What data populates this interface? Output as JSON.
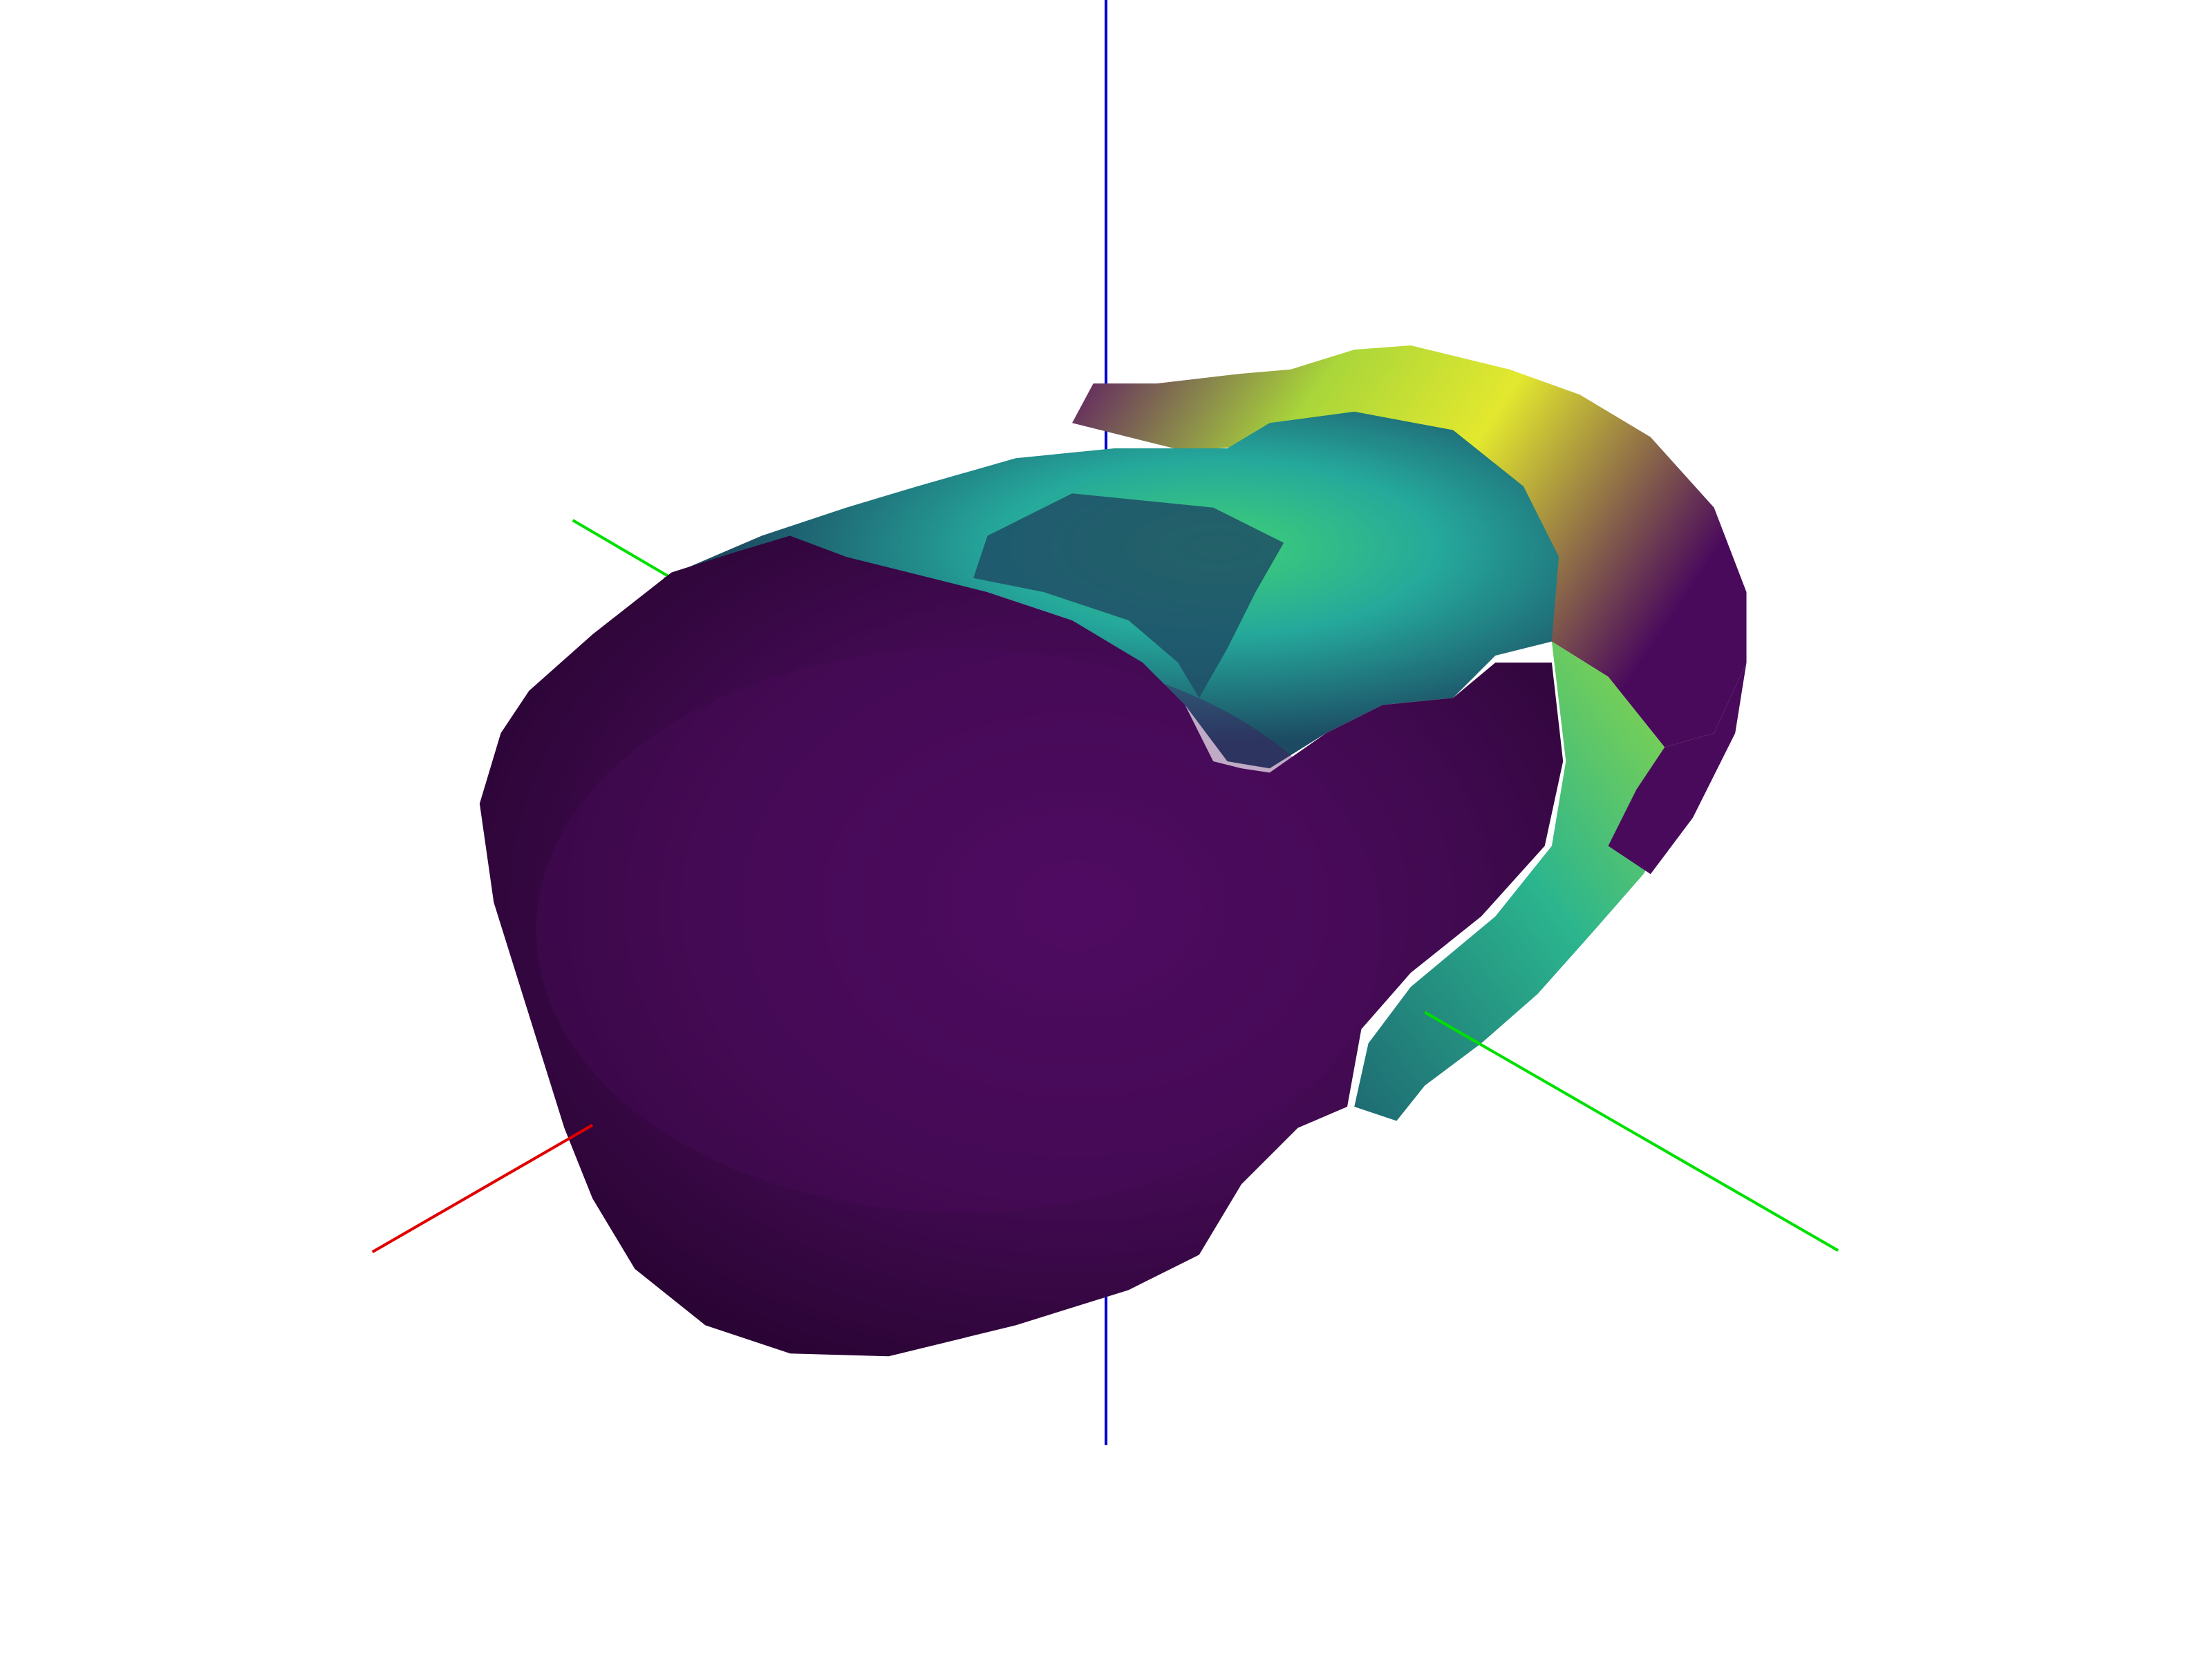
{
  "scene": {
    "background": "#ffffff",
    "colormap": "viridis",
    "axes": {
      "x_color": "#e00000",
      "y_color": "#00e000",
      "z_color": "#0000d0"
    },
    "mesh_colors": {
      "outer_dark": "#2a0535",
      "outer_mid": "#420a52",
      "outer_light": "#550b68",
      "rim_dark": "#1f3e52",
      "teal": "#24a59a",
      "green": "#3ccf6a",
      "yellow": "#dde830"
    }
  }
}
